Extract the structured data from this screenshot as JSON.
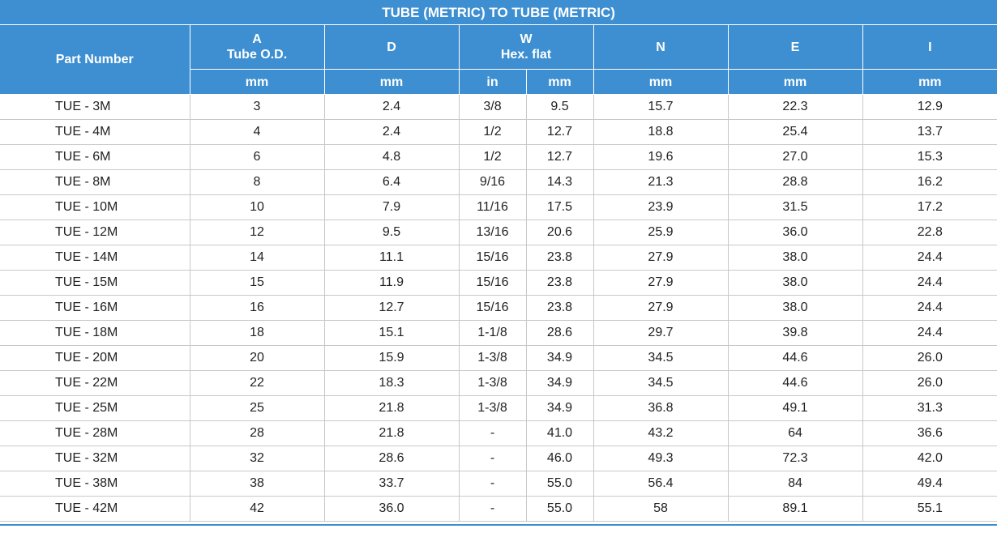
{
  "title": "TUBE (METRIC) TO TUBE (METRIC)",
  "headers": {
    "part_number": "Part Number",
    "a_letter": "A",
    "a_desc": "Tube O.D.",
    "d_letter": "D",
    "w_letter": "W",
    "w_desc": "Hex. flat",
    "n_letter": "N",
    "e_letter": "E",
    "i_letter": "I"
  },
  "units": {
    "a": "mm",
    "d": "mm",
    "w_in": "in",
    "w_mm": "mm",
    "n": "mm",
    "e": "mm",
    "i": "mm"
  },
  "rows": [
    [
      "TUE - 3M",
      "3",
      "2.4",
      "3/8",
      "9.5",
      "15.7",
      "22.3",
      "12.9"
    ],
    [
      "TUE - 4M",
      "4",
      "2.4",
      "1/2",
      "12.7",
      "18.8",
      "25.4",
      "13.7"
    ],
    [
      "TUE - 6M",
      "6",
      "4.8",
      "1/2",
      "12.7",
      "19.6",
      "27.0",
      "15.3"
    ],
    [
      "TUE - 8M",
      "8",
      "6.4",
      "9/16",
      "14.3",
      "21.3",
      "28.8",
      "16.2"
    ],
    [
      "TUE - 10M",
      "10",
      "7.9",
      "11/16",
      "17.5",
      "23.9",
      "31.5",
      "17.2"
    ],
    [
      "TUE - 12M",
      "12",
      "9.5",
      "13/16",
      "20.6",
      "25.9",
      "36.0",
      "22.8"
    ],
    [
      "TUE - 14M",
      "14",
      "11.1",
      "15/16",
      "23.8",
      "27.9",
      "38.0",
      "24.4"
    ],
    [
      "TUE - 15M",
      "15",
      "11.9",
      "15/16",
      "23.8",
      "27.9",
      "38.0",
      "24.4"
    ],
    [
      "TUE - 16M",
      "16",
      "12.7",
      "15/16",
      "23.8",
      "27.9",
      "38.0",
      "24.4"
    ],
    [
      "TUE - 18M",
      "18",
      "15.1",
      "1-1/8",
      "28.6",
      "29.7",
      "39.8",
      "24.4"
    ],
    [
      "TUE - 20M",
      "20",
      "15.9",
      "1-3/8",
      "34.9",
      "34.5",
      "44.6",
      "26.0"
    ],
    [
      "TUE - 22M",
      "22",
      "18.3",
      "1-3/8",
      "34.9",
      "34.5",
      "44.6",
      "26.0"
    ],
    [
      "TUE - 25M",
      "25",
      "21.8",
      "1-3/8",
      "34.9",
      "36.8",
      "49.1",
      "31.3"
    ],
    [
      "TUE - 28M",
      "28",
      "21.8",
      "-",
      "41.0",
      "43.2",
      "64",
      "36.6"
    ],
    [
      "TUE - 32M",
      "32",
      "28.6",
      "-",
      "46.0",
      "49.3",
      "72.3",
      "42.0"
    ],
    [
      "TUE - 38M",
      "38",
      "33.7",
      "-",
      "55.0",
      "56.4",
      "84",
      "49.4"
    ],
    [
      "TUE - 42M",
      "42",
      "36.0",
      "-",
      "55.0",
      "58",
      "89.1",
      "55.1"
    ]
  ]
}
